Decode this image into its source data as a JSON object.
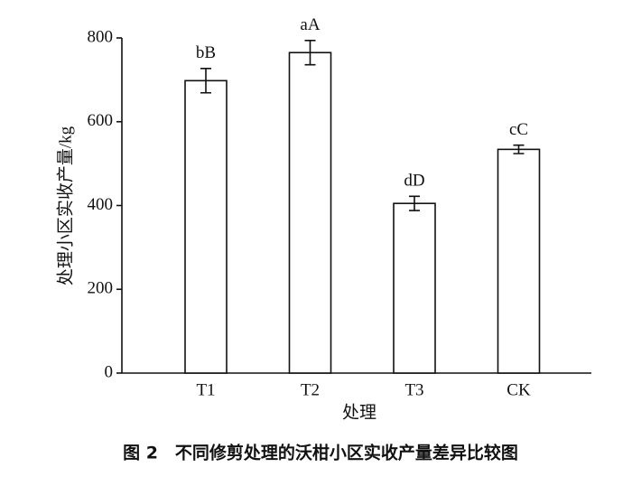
{
  "chart_data": {
    "type": "bar",
    "caption": "图 2　不同修剪处理的沃柑小区实收产量差异比较图",
    "x_label": "处理",
    "y_label": "处理小区实收产量/kg",
    "categories": [
      "T1",
      "T2",
      "T3",
      "CK"
    ],
    "values": [
      698,
      765,
      405,
      534
    ],
    "errors": [
      29,
      29,
      17,
      10
    ],
    "significance": [
      "bB",
      "aA",
      "dD",
      "cC"
    ],
    "color": "#ffffff",
    "ylim": [
      0,
      800
    ],
    "yticks": [
      0,
      200,
      400,
      600,
      800
    ],
    "grid": false
  }
}
